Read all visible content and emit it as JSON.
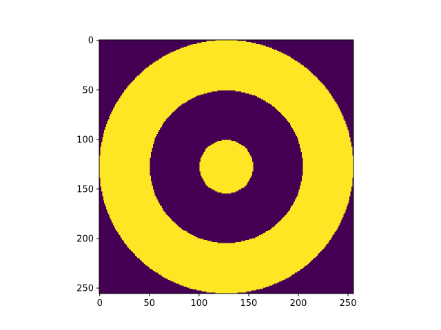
{
  "chart_data": {
    "type": "heatmap",
    "title": "",
    "xlabel": "",
    "ylabel": "",
    "image_size": [
      256,
      256
    ],
    "xlim": [
      -0.5,
      255.5
    ],
    "ylim": [
      255.5,
      -0.5
    ],
    "origin": "upper",
    "colormap": "viridis",
    "colors": {
      "low": "#440154",
      "high": "#fde725"
    },
    "x_ticks": [
      0,
      50,
      100,
      150,
      200,
      250
    ],
    "y_ticks": [
      0,
      50,
      100,
      150,
      200,
      250
    ],
    "x_tick_labels": [
      "0",
      "50",
      "100",
      "150",
      "200",
      "250"
    ],
    "y_tick_labels": [
      "0",
      "50",
      "100",
      "150",
      "200",
      "250"
    ],
    "center": [
      127.5,
      127.5
    ],
    "regions": [
      {
        "value": 1,
        "r_min": 0,
        "r_max": 27
      },
      {
        "value": 0,
        "r_min": 27,
        "r_max": 77
      },
      {
        "value": 1,
        "r_min": 77,
        "r_max": 128
      },
      {
        "value": 0,
        "r_min": 128,
        "r_max": 999
      }
    ],
    "grid": false,
    "legend": "none"
  }
}
